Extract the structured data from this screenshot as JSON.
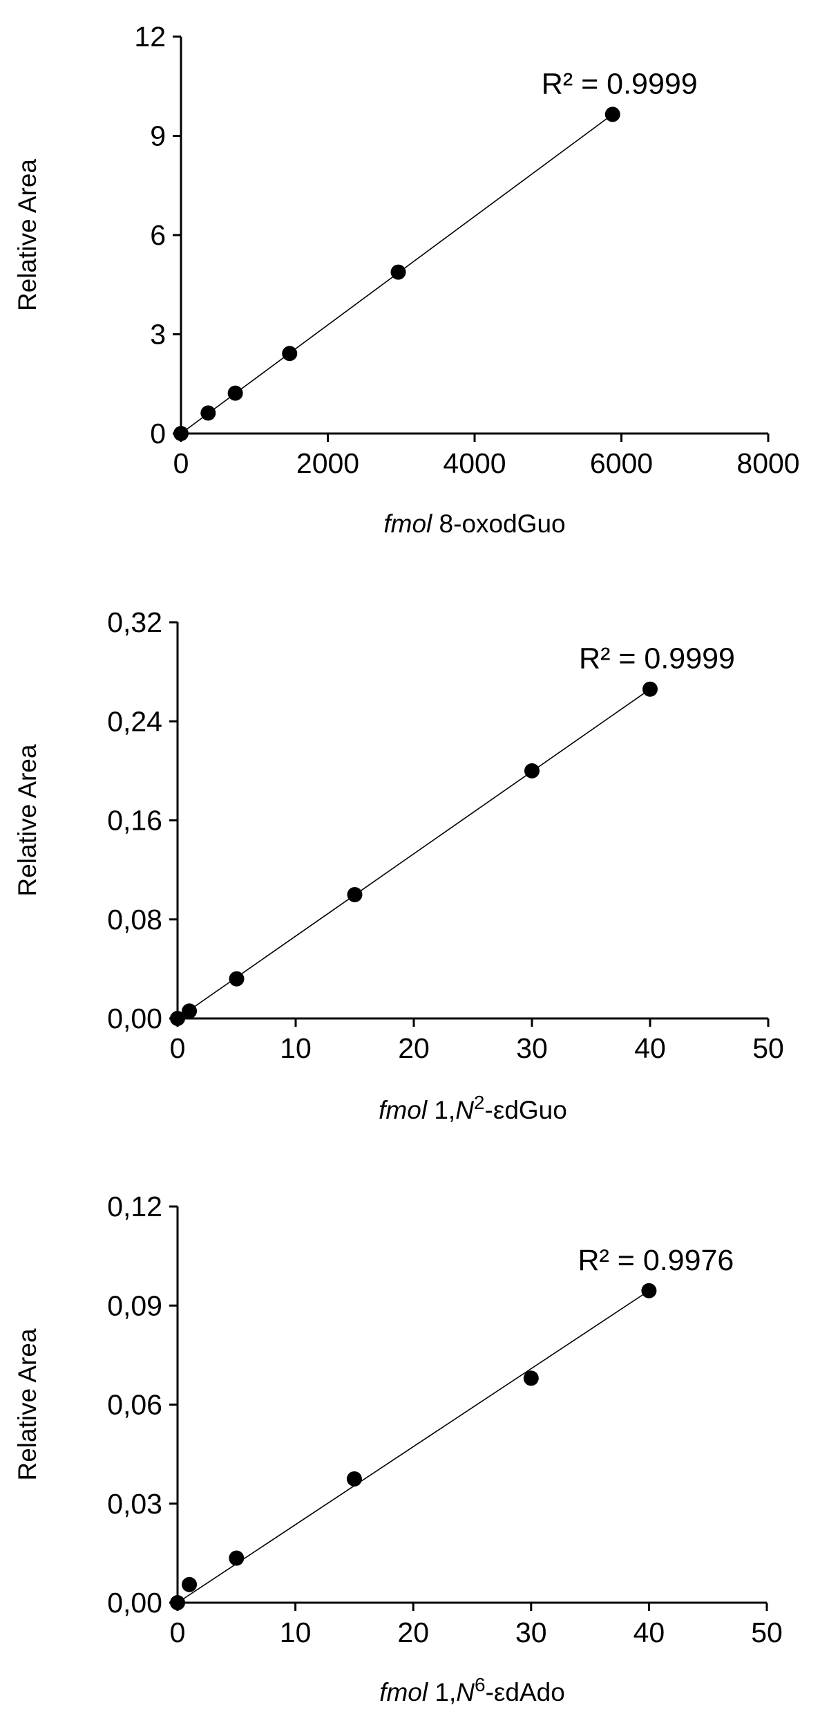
{
  "chart_data": [
    {
      "type": "scatter",
      "title": "",
      "ylabel": "Relative Area",
      "xlabel": {
        "prefix": "fmol",
        "suffix": " 8-oxodGuo",
        "italic_mid": "",
        "sup": "",
        "tail": ""
      },
      "xlim": [
        0,
        8000
      ],
      "ylim": [
        0,
        12
      ],
      "x_ticks": [
        "0",
        "2000",
        "4000",
        "6000",
        "8000"
      ],
      "y_ticks": [
        "0",
        "3",
        "6",
        "9",
        "12"
      ],
      "x": [
        0,
        370,
        740,
        1480,
        2960,
        5880
      ],
      "y": [
        0,
        0.62,
        1.22,
        2.42,
        4.88,
        9.65
      ],
      "trendline": {
        "x": [
          0,
          5880
        ],
        "y": [
          0,
          9.65
        ]
      },
      "annotation": "R² = 0.9999",
      "grid": false,
      "legend": "none"
    },
    {
      "type": "scatter",
      "title": "",
      "ylabel": "Relative Area",
      "xlabel": {
        "prefix": "fmol",
        "suffix": " 1,",
        "italic_mid": "N",
        "sup": "2",
        "tail": "-εdGuo"
      },
      "xlim": [
        0,
        50
      ],
      "ylim": [
        0,
        0.32
      ],
      "x_ticks": [
        "0",
        "10",
        "20",
        "30",
        "40",
        "50"
      ],
      "y_ticks": [
        "0,00",
        "0,08",
        "0,16",
        "0,24",
        "0,32"
      ],
      "x": [
        0,
        1,
        5,
        15,
        30,
        40
      ],
      "y": [
        0,
        0.006,
        0.032,
        0.1,
        0.2,
        0.266
      ],
      "trendline": {
        "x": [
          0,
          40
        ],
        "y": [
          0,
          0.266
        ]
      },
      "annotation": "R² = 0.9999",
      "grid": false,
      "legend": "none"
    },
    {
      "type": "scatter",
      "title": "",
      "ylabel": "Relative Area",
      "xlabel": {
        "prefix": "fmol",
        "suffix": " 1,",
        "italic_mid": "N",
        "sup": "6",
        "tail": "-εdAdo"
      },
      "xlim": [
        0,
        50
      ],
      "ylim": [
        0,
        0.12
      ],
      "x_ticks": [
        "0",
        "10",
        "20",
        "30",
        "40",
        "50"
      ],
      "y_ticks": [
        "0,00",
        "0,03",
        "0,06",
        "0,09",
        "0,12"
      ],
      "x": [
        0,
        1,
        5,
        15,
        30,
        40
      ],
      "y": [
        0,
        0.0055,
        0.0135,
        0.0375,
        0.068,
        0.0945
      ],
      "trendline": {
        "x": [
          0,
          40
        ],
        "y": [
          0,
          0.0945
        ]
      },
      "annotation": "R² = 0.9976",
      "grid": false,
      "legend": "none"
    }
  ]
}
